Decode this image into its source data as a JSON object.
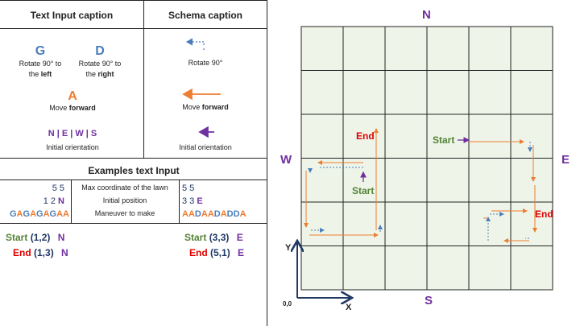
{
  "legend": {
    "text_input_caption": "Text Input caption",
    "schema_caption": "Schema caption",
    "g_letter": "G",
    "g_caption_1": "Rotate 90° to",
    "g_caption_2a": "the ",
    "g_caption_2b": "left",
    "d_letter": "D",
    "d_caption_1": "Rotate 90° to",
    "d_caption_2a": "the ",
    "d_caption_2b": "right",
    "a_letter": "A",
    "a_caption_a": "Move ",
    "a_caption_b": "forward",
    "orientation_letters": "N | E | W | S",
    "orientation_caption": "Initial orientation",
    "schema_rotate": "Rotate 90°",
    "schema_move_a": "Move ",
    "schema_move_b": "forward",
    "schema_orientation": "Initial orientation"
  },
  "examples": {
    "title": "Examples text Input",
    "left_coords": "5 5",
    "left_pos": "1 2",
    "left_dir": "N",
    "left_moves": [
      {
        "t": "G",
        "c": "blue"
      },
      {
        "t": "A",
        "c": "orange"
      },
      {
        "t": "G",
        "c": "blue"
      },
      {
        "t": "A",
        "c": "orange"
      },
      {
        "t": "G",
        "c": "blue"
      },
      {
        "t": "A",
        "c": "orange"
      },
      {
        "t": "G",
        "c": "blue"
      },
      {
        "t": "A",
        "c": "orange"
      },
      {
        "t": "A",
        "c": "orange"
      }
    ],
    "mid_1": "Max  coordinate of the lawn",
    "mid_2": "Initial position",
    "mid_3": "Maneuver to make",
    "right_coords": "5 5",
    "right_pos": "3 3",
    "right_dir": "E",
    "right_moves": [
      {
        "t": "A",
        "c": "orange"
      },
      {
        "t": "A",
        "c": "orange"
      },
      {
        "t": "D",
        "c": "blue"
      },
      {
        "t": "A",
        "c": "orange"
      },
      {
        "t": "A",
        "c": "orange"
      },
      {
        "t": "D",
        "c": "blue"
      },
      {
        "t": "A",
        "c": "orange"
      },
      {
        "t": "D",
        "c": "blue"
      },
      {
        "t": "D",
        "c": "blue"
      },
      {
        "t": "A",
        "c": "orange"
      }
    ],
    "start_label": "Start",
    "end_label": "End",
    "left_start_pos": "(1,2)",
    "left_start_dir": "N",
    "left_end_pos": "(1,3)",
    "left_end_dir": "N",
    "right_start_pos": "(3,3)",
    "right_start_dir": "E",
    "right_end_pos": "(5,1)",
    "right_end_dir": "E"
  },
  "grid": {
    "north": "N",
    "south": "S",
    "west": "W",
    "east": "E",
    "y_axis": "Y",
    "x_axis": "X",
    "origin": "0,0",
    "start_1": "Start",
    "end_1": "End",
    "start_2": "Start",
    "end_2": "End",
    "cells": 6
  },
  "colors": {
    "blue": "#4a7ebb",
    "orange": "#ed7d31",
    "purple": "#7030a0",
    "green": "#548235",
    "red": "#e00000",
    "navy": "#1f3864",
    "grid_fill": "#eef5e8"
  }
}
